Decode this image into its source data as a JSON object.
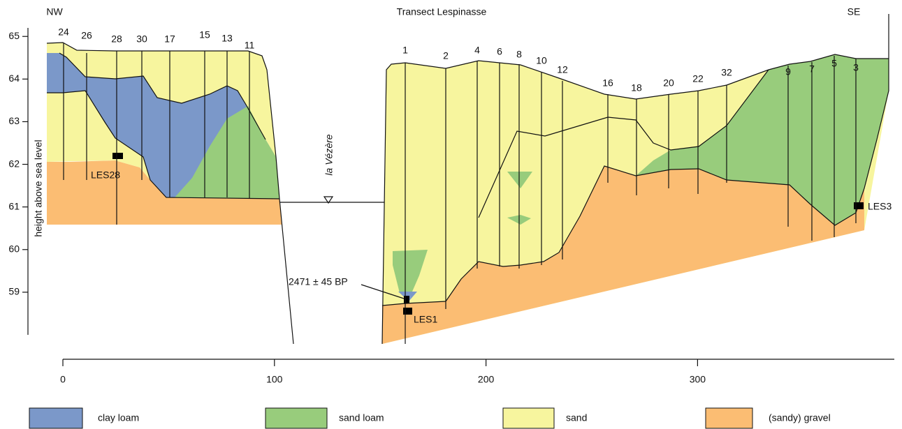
{
  "header": {
    "title": "Transect Lespinasse",
    "left": "NW",
    "right": "SE"
  },
  "y_axis": {
    "label": "height above sea level",
    "ticks": [
      59,
      60,
      61,
      62,
      63,
      64,
      65
    ],
    "lim": [
      58,
      65.2
    ]
  },
  "x_axis": {
    "ticks": [
      0,
      100,
      200,
      300
    ],
    "lim": [
      0,
      393
    ]
  },
  "boreholes": {
    "left": [
      24,
      26,
      28,
      30,
      17,
      15,
      13,
      11
    ],
    "right": [
      1,
      2,
      4,
      6,
      8,
      10,
      12,
      16,
      18,
      20,
      22,
      32,
      9,
      7,
      5,
      3
    ]
  },
  "annotations": {
    "river": "la Vézère",
    "date": "2471 ± 45 BP",
    "samples": [
      "LES28",
      "LES1",
      "LES3"
    ]
  },
  "legend": [
    {
      "label": "clay loam",
      "color": "#7b98c9"
    },
    {
      "label": "sand loam",
      "color": "#98cc7c"
    },
    {
      "label": "sand",
      "color": "#f7f59e"
    },
    {
      "label": "(sandy) gravel",
      "color": "#fbbd73"
    }
  ]
}
